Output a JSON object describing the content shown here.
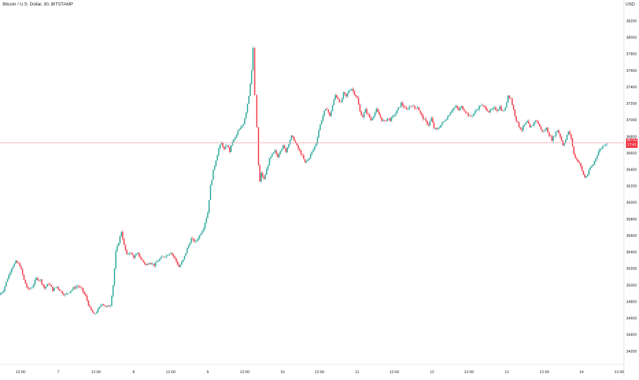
{
  "header": {
    "symbol": "Bitcoin / U.S. Dollar, 30, BITSTAMP",
    "currency": "USD"
  },
  "last_price": {
    "value": "36722",
    "countdown": "17:41"
  },
  "colors": {
    "up": "#26a69a",
    "down": "#f23645",
    "axis_text": "#131722",
    "axis_line": "#e0e3eb",
    "last_price_line": "#f7a9b0",
    "background": "#ffffff"
  },
  "chart_data": {
    "type": "candlestick",
    "title": "Bitcoin / U.S. Dollar, 30, BITSTAMP",
    "interval": "30",
    "exchange": "BITSTAMP",
    "ylabel": "USD",
    "ylim": [
      34140,
      38320
    ],
    "y_ticks": [
      "38200",
      "38000",
      "37800",
      "37600",
      "37400",
      "37200",
      "37000",
      "36800",
      "36600",
      "36400",
      "36200",
      "36000",
      "35800",
      "35600",
      "35400",
      "35200",
      "35000",
      "34800",
      "34600",
      "34400",
      "34200"
    ],
    "x_ticks": [
      "12:00",
      "7",
      "12:00",
      "8",
      "12:00",
      "9",
      "12:00",
      "10",
      "12:00",
      "11",
      "12:00",
      "12",
      "12:00",
      "13",
      "12:00",
      "14",
      "12:00"
    ],
    "grid": false,
    "last_price": 36722,
    "series_close": [
      [
        0,
        34880
      ],
      [
        6,
        34940
      ],
      [
        12,
        35080
      ],
      [
        18,
        35210
      ],
      [
        24,
        35280
      ],
      [
        30,
        35240
      ],
      [
        36,
        35060
      ],
      [
        42,
        34940
      ],
      [
        48,
        34980
      ],
      [
        54,
        35080
      ],
      [
        60,
        35060
      ],
      [
        66,
        34960
      ],
      [
        72,
        35020
      ],
      [
        78,
        34940
      ],
      [
        84,
        34980
      ],
      [
        90,
        34920
      ],
      [
        96,
        34880
      ],
      [
        102,
        34920
      ],
      [
        108,
        34960
      ],
      [
        114,
        34990
      ],
      [
        120,
        34950
      ],
      [
        126,
        34860
      ],
      [
        132,
        34720
      ],
      [
        138,
        34640
      ],
      [
        144,
        34700
      ],
      [
        150,
        34780
      ],
      [
        156,
        34730
      ],
      [
        162,
        34760
      ],
      [
        166,
        35000
      ],
      [
        170,
        35400
      ],
      [
        174,
        35520
      ],
      [
        178,
        35650
      ],
      [
        182,
        35480
      ],
      [
        186,
        35360
      ],
      [
        190,
        35400
      ],
      [
        196,
        35340
      ],
      [
        202,
        35380
      ],
      [
        208,
        35300
      ],
      [
        214,
        35240
      ],
      [
        220,
        35280
      ],
      [
        226,
        35240
      ],
      [
        232,
        35300
      ],
      [
        238,
        35340
      ],
      [
        244,
        35360
      ],
      [
        250,
        35400
      ],
      [
        256,
        35320
      ],
      [
        262,
        35220
      ],
      [
        268,
        35300
      ],
      [
        274,
        35440
      ],
      [
        280,
        35560
      ],
      [
        286,
        35520
      ],
      [
        292,
        35600
      ],
      [
        298,
        35700
      ],
      [
        304,
        35880
      ],
      [
        308,
        36200
      ],
      [
        312,
        36380
      ],
      [
        316,
        36520
      ],
      [
        320,
        36650
      ],
      [
        324,
        36720
      ],
      [
        328,
        36640
      ],
      [
        332,
        36700
      ],
      [
        336,
        36620
      ],
      [
        340,
        36740
      ],
      [
        344,
        36780
      ],
      [
        348,
        36860
      ],
      [
        352,
        36900
      ],
      [
        356,
        36960
      ],
      [
        360,
        37100
      ],
      [
        364,
        37300
      ],
      [
        368,
        37600
      ],
      [
        370,
        37860
      ],
      [
        373,
        37300
      ],
      [
        376,
        36900
      ],
      [
        378,
        36450
      ],
      [
        380,
        36250
      ],
      [
        382,
        36350
      ],
      [
        386,
        36280
      ],
      [
        390,
        36400
      ],
      [
        394,
        36520
      ],
      [
        398,
        36580
      ],
      [
        402,
        36620
      ],
      [
        406,
        36560
      ],
      [
        410,
        36640
      ],
      [
        414,
        36680
      ],
      [
        418,
        36620
      ],
      [
        422,
        36720
      ],
      [
        426,
        36800
      ],
      [
        430,
        36760
      ],
      [
        434,
        36680
      ],
      [
        438,
        36620
      ],
      [
        442,
        36560
      ],
      [
        446,
        36480
      ],
      [
        450,
        36520
      ],
      [
        454,
        36580
      ],
      [
        458,
        36640
      ],
      [
        462,
        36720
      ],
      [
        466,
        36880
      ],
      [
        470,
        37000
      ],
      [
        474,
        37100
      ],
      [
        478,
        37140
      ],
      [
        482,
        37040
      ],
      [
        486,
        37180
      ],
      [
        490,
        37300
      ],
      [
        494,
        37260
      ],
      [
        498,
        37200
      ],
      [
        502,
        37320
      ],
      [
        506,
        37280
      ],
      [
        510,
        37360
      ],
      [
        514,
        37380
      ],
      [
        518,
        37320
      ],
      [
        522,
        37260
      ],
      [
        526,
        37100
      ],
      [
        530,
        37040
      ],
      [
        534,
        37120
      ],
      [
        538,
        37060
      ],
      [
        542,
        37000
      ],
      [
        546,
        37060
      ],
      [
        550,
        37120
      ],
      [
        554,
        37060
      ],
      [
        558,
        37000
      ],
      [
        562,
        36980
      ],
      [
        566,
        37020
      ],
      [
        570,
        37000
      ],
      [
        574,
        37040
      ],
      [
        578,
        37080
      ],
      [
        582,
        37140
      ],
      [
        586,
        37200
      ],
      [
        590,
        37160
      ],
      [
        594,
        37120
      ],
      [
        598,
        37160
      ],
      [
        602,
        37180
      ],
      [
        606,
        37140
      ],
      [
        610,
        37160
      ],
      [
        614,
        37080
      ],
      [
        618,
        37020
      ],
      [
        622,
        36980
      ],
      [
        626,
        36940
      ],
      [
        630,
        37020
      ],
      [
        634,
        36900
      ],
      [
        638,
        36880
      ],
      [
        642,
        36920
      ],
      [
        646,
        36960
      ],
      [
        650,
        37000
      ],
      [
        654,
        37040
      ],
      [
        658,
        37100
      ],
      [
        662,
        37140
      ],
      [
        666,
        37160
      ],
      [
        670,
        37120
      ],
      [
        674,
        37160
      ],
      [
        678,
        37120
      ],
      [
        682,
        37080
      ],
      [
        686,
        37040
      ],
      [
        690,
        37060
      ],
      [
        694,
        37100
      ],
      [
        698,
        37140
      ],
      [
        702,
        37180
      ],
      [
        706,
        37160
      ],
      [
        710,
        37140
      ],
      [
        714,
        37100
      ],
      [
        718,
        37120
      ],
      [
        722,
        37140
      ],
      [
        726,
        37120
      ],
      [
        730,
        37160
      ],
      [
        734,
        37100
      ],
      [
        738,
        37140
      ],
      [
        742,
        37300
      ],
      [
        746,
        37260
      ],
      [
        750,
        37120
      ],
      [
        754,
        37000
      ],
      [
        758,
        36920
      ],
      [
        762,
        36880
      ],
      [
        766,
        36940
      ],
      [
        770,
        36980
      ],
      [
        774,
        36900
      ],
      [
        778,
        36940
      ],
      [
        782,
        37000
      ],
      [
        786,
        36960
      ],
      [
        790,
        36880
      ],
      [
        794,
        36860
      ],
      [
        798,
        36900
      ],
      [
        802,
        36820
      ],
      [
        806,
        36760
      ],
      [
        810,
        36820
      ],
      [
        814,
        36880
      ],
      [
        818,
        36800
      ],
      [
        822,
        36700
      ],
      [
        826,
        36760
      ],
      [
        830,
        36860
      ],
      [
        834,
        36780
      ],
      [
        838,
        36580
      ],
      [
        842,
        36520
      ],
      [
        846,
        36480
      ],
      [
        850,
        36380
      ],
      [
        854,
        36300
      ],
      [
        858,
        36340
      ],
      [
        862,
        36420
      ],
      [
        866,
        36460
      ],
      [
        870,
        36540
      ],
      [
        874,
        36620
      ],
      [
        878,
        36660
      ],
      [
        882,
        36700
      ],
      [
        886,
        36722
      ]
    ]
  }
}
